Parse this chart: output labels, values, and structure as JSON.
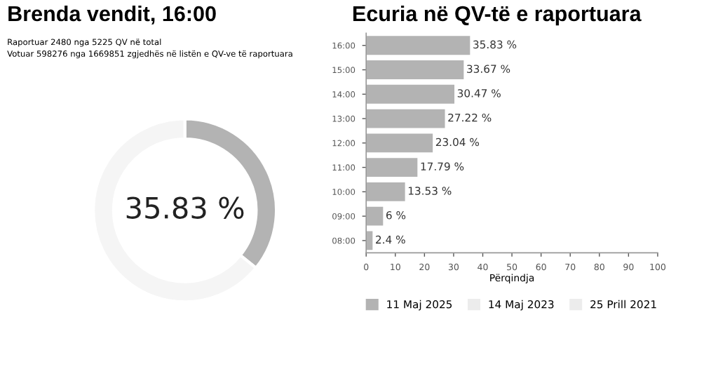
{
  "chart_data": [
    {
      "type": "donut",
      "title": "Brenda vendit, 16:00",
      "subtitle": "Raportuar 2480 nga 5225 QV në total\nVotuar 598276 nga 1669851 zgjedhës në listën e QV-ve të raportuara",
      "categories": [
        null,
        null
      ],
      "values": [
        35.83,
        64.17
      ],
      "colors": [
        "#b3b3b3",
        "#f5f5f5"
      ],
      "value_labels": [
        "35.83 %",
        null
      ],
      "legend": false
    },
    {
      "type": "bar",
      "orientation": "horizontal",
      "title": "Ecuria në QV-të e raportuara",
      "categories": [
        "16:00",
        "15:00",
        "14:00",
        "13:00",
        "12:00",
        "11:00",
        "10:00",
        "09:00",
        "08:00"
      ],
      "xlabel": "Përqindja",
      "xlim": [
        0,
        100
      ],
      "xticks": [
        0,
        10,
        20,
        30,
        40,
        50,
        60,
        70,
        80,
        90,
        100
      ],
      "legend": "bottom",
      "grid": false,
      "series": [
        {
          "name": "11 Maj 2025",
          "color": "#b3b3b3",
          "values": [
            35.83,
            33.67,
            30.47,
            27.22,
            23.04,
            17.79,
            13.53,
            6,
            2.4
          ],
          "value_labels": [
            "35.83 %",
            "33.67 %",
            "30.47 %",
            "27.22 %",
            "23.04 %",
            "17.79 %",
            "13.53 %",
            "6 %",
            "2.4 %"
          ]
        },
        {
          "name": "14 Maj 2023",
          "color": "#ececec",
          "values": [
            null,
            null,
            null,
            null,
            null,
            null,
            null,
            null,
            null
          ]
        },
        {
          "name": "25 Prill 2021",
          "color": "#ececec",
          "values": [
            null,
            null,
            null,
            null,
            null,
            null,
            null,
            null,
            null
          ]
        }
      ]
    }
  ]
}
